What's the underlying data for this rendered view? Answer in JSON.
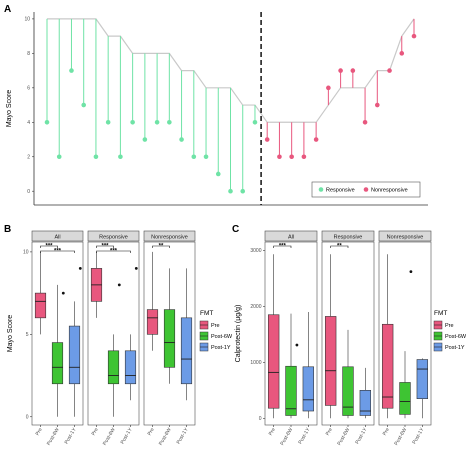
{
  "colors": {
    "responsive": "#6fe3a6",
    "nonresponsive": "#e8577e",
    "outline": "#c9c9c9",
    "pre": "#e8577e",
    "post6w": "#3ec433",
    "post1y": "#6c9be6",
    "strip_bg": "#d9d9d9",
    "panel_border": "#4d4d4d",
    "divider": "#000000"
  },
  "panel_labels": {
    "a": "A",
    "b": "B",
    "c": "C"
  },
  "chart_data": [
    {
      "id": "A",
      "type": "lollipop",
      "ylabel": "Mayo Score",
      "ylim": [
        0,
        10
      ],
      "yticks": [
        0,
        2,
        4,
        6,
        8,
        10
      ],
      "legend": {
        "position": "bottom-right",
        "entries": [
          "Responsive",
          "Nonresponsive"
        ]
      },
      "divider_after_index": 18,
      "patients": [
        {
          "group": "Responsive",
          "pre": 10,
          "post": 4
        },
        {
          "group": "Responsive",
          "pre": 10,
          "post": 2
        },
        {
          "group": "Responsive",
          "pre": 10,
          "post": 7
        },
        {
          "group": "Responsive",
          "pre": 10,
          "post": 5
        },
        {
          "group": "Responsive",
          "pre": 10,
          "post": 2
        },
        {
          "group": "Responsive",
          "pre": 9,
          "post": 4
        },
        {
          "group": "Responsive",
          "pre": 9,
          "post": 2
        },
        {
          "group": "Responsive",
          "pre": 8,
          "post": 4
        },
        {
          "group": "Responsive",
          "pre": 8,
          "post": 3
        },
        {
          "group": "Responsive",
          "pre": 8,
          "post": 4
        },
        {
          "group": "Responsive",
          "pre": 8,
          "post": 4
        },
        {
          "group": "Responsive",
          "pre": 7,
          "post": 3
        },
        {
          "group": "Responsive",
          "pre": 7,
          "post": 2
        },
        {
          "group": "Responsive",
          "pre": 6,
          "post": 2
        },
        {
          "group": "Responsive",
          "pre": 6,
          "post": 1
        },
        {
          "group": "Responsive",
          "pre": 6,
          "post": 0
        },
        {
          "group": "Responsive",
          "pre": 5,
          "post": 0
        },
        {
          "group": "Responsive",
          "pre": 5,
          "post": 4
        },
        {
          "group": "Nonresponsive",
          "pre": 4,
          "post": 3
        },
        {
          "group": "Nonresponsive",
          "pre": 4,
          "post": 2
        },
        {
          "group": "Nonresponsive",
          "pre": 4,
          "post": 2
        },
        {
          "group": "Nonresponsive",
          "pre": 4,
          "post": 2
        },
        {
          "group": "Nonresponsive",
          "pre": 4,
          "post": 3
        },
        {
          "group": "Nonresponsive",
          "pre": 5,
          "post": 6
        },
        {
          "group": "Nonresponsive",
          "pre": 6,
          "post": 7
        },
        {
          "group": "Nonresponsive",
          "pre": 6,
          "post": 7
        },
        {
          "group": "Nonresponsive",
          "pre": 6,
          "post": 4
        },
        {
          "group": "Nonresponsive",
          "pre": 7,
          "post": 5
        },
        {
          "group": "Nonresponsive",
          "pre": 7,
          "post": 7
        },
        {
          "group": "Nonresponsive",
          "pre": 9,
          "post": 8
        },
        {
          "group": "Nonresponsive",
          "pre": 10,
          "post": 9
        }
      ]
    },
    {
      "id": "B",
      "type": "box",
      "ylabel": "Mayo Score",
      "ylim": [
        0,
        10
      ],
      "yticks": [
        0,
        5,
        10
      ],
      "categories": [
        "Pre",
        "Post-6W",
        "Post-1Y"
      ],
      "legend": {
        "title": "FMT",
        "position": "right",
        "entries": [
          "Pre",
          "Post-6W",
          "Post-1Y"
        ]
      },
      "facets": [
        {
          "name": "All",
          "sig": [
            "***",
            "***"
          ],
          "boxes": [
            {
              "lw": 5,
              "q1": 6,
              "med": 7,
              "q3": 7.5,
              "uw": 10,
              "out": []
            },
            {
              "lw": 0,
              "q1": 2,
              "med": 3,
              "q3": 4.5,
              "uw": 8,
              "out": [
                7.5
              ]
            },
            {
              "lw": 0,
              "q1": 2,
              "med": 3,
              "q3": 5.5,
              "uw": 7,
              "out": [
                9
              ]
            }
          ]
        },
        {
          "name": "Responsive",
          "sig": [
            "***",
            "***"
          ],
          "boxes": [
            {
              "lw": 6,
              "q1": 7,
              "med": 8,
              "q3": 9,
              "uw": 10,
              "out": []
            },
            {
              "lw": 0,
              "q1": 2,
              "med": 2.5,
              "q3": 4,
              "uw": 5,
              "out": [
                8
              ]
            },
            {
              "lw": 1,
              "q1": 2,
              "med": 2.5,
              "q3": 4,
              "uw": 5,
              "out": [
                9
              ]
            }
          ]
        },
        {
          "name": "Nonresponsive",
          "sig": [
            "**"
          ],
          "boxes": [
            {
              "lw": 4,
              "q1": 5,
              "med": 6,
              "q3": 6.5,
              "uw": 10,
              "out": []
            },
            {
              "lw": 2,
              "q1": 3,
              "med": 4.5,
              "q3": 6.5,
              "uw": 9,
              "out": []
            },
            {
              "lw": 1,
              "q1": 2,
              "med": 3.5,
              "q3": 6,
              "uw": 9,
              "out": []
            }
          ]
        }
      ]
    },
    {
      "id": "C",
      "type": "box",
      "ylabel": "Calprotectin (μg/g)",
      "ylim": [
        0,
        3000
      ],
      "yticks": [
        0,
        1000,
        2000,
        3000
      ],
      "categories": [
        "Pre",
        "Post-6W",
        "Post-1Y"
      ],
      "legend": {
        "title": "FMT",
        "position": "right",
        "entries": [
          "Pre",
          "Post-6W",
          "Post-1Y"
        ]
      },
      "facets": [
        {
          "name": "All",
          "sig": [
            "***"
          ],
          "boxes": [
            {
              "lw": 0,
              "q1": 180,
              "med": 820,
              "q3": 1850,
              "uw": 2930,
              "out": []
            },
            {
              "lw": 0,
              "q1": 50,
              "med": 170,
              "q3": 930,
              "uw": 1870,
              "out": [
                1310
              ]
            },
            {
              "lw": 0,
              "q1": 130,
              "med": 330,
              "q3": 920,
              "uw": 1900,
              "out": []
            }
          ]
        },
        {
          "name": "Responsive",
          "sig": [
            "**"
          ],
          "boxes": [
            {
              "lw": 0,
              "q1": 230,
              "med": 850,
              "q3": 1820,
              "uw": 2930,
              "out": []
            },
            {
              "lw": 0,
              "q1": 50,
              "med": 200,
              "q3": 920,
              "uw": 1580,
              "out": []
            },
            {
              "lw": 0,
              "q1": 50,
              "med": 130,
              "q3": 500,
              "uw": 900,
              "out": []
            }
          ]
        },
        {
          "name": "Nonresponsive",
          "sig": [],
          "boxes": [
            {
              "lw": 0,
              "q1": 180,
              "med": 380,
              "q3": 1680,
              "uw": 2930,
              "out": []
            },
            {
              "lw": 0,
              "q1": 70,
              "med": 300,
              "q3": 640,
              "uw": 1200,
              "out": [
                2620
              ]
            },
            {
              "lw": 0,
              "q1": 350,
              "med": 880,
              "q3": 1050,
              "uw": 1070,
              "out": []
            }
          ]
        }
      ]
    }
  ]
}
